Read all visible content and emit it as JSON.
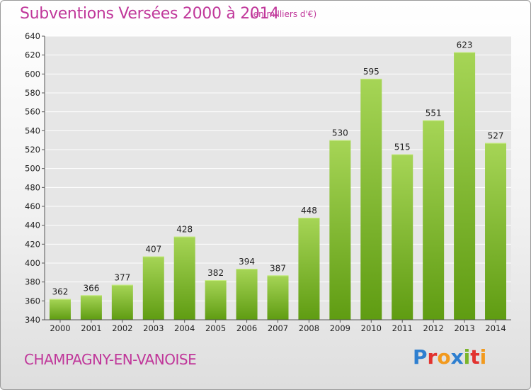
{
  "title": "Subventions Versées 2000 à 2014",
  "unit_note": "(en milliers d'€)",
  "commune": "CHAMPAGNY-EN-VANOISE",
  "logo": {
    "text": "Proxiti",
    "letters": [
      {
        "char": "P",
        "color": "#2e7fd0"
      },
      {
        "char": "r",
        "color": "#e2332f"
      },
      {
        "char": "o",
        "color": "#f29a1e"
      },
      {
        "char": "x",
        "color": "#2e7fd0"
      },
      {
        "char": "i",
        "color": "#7bb52a"
      },
      {
        "char": "t",
        "color": "#e2332f"
      },
      {
        "char": "i",
        "color": "#f29a1e"
      }
    ]
  },
  "colors": {
    "bar_light": "#a6d556",
    "bar_dark": "#5f9c12",
    "title": "#c0379a",
    "grid": "#ffffff"
  },
  "chart_data": {
    "type": "bar",
    "title": "Subventions Versées 2000 à 2014",
    "subtitle": "(en milliers d'€)",
    "categories": [
      "2000",
      "2001",
      "2002",
      "2003",
      "2004",
      "2005",
      "2006",
      "2007",
      "2008",
      "2009",
      "2010",
      "2011",
      "2012",
      "2013",
      "2014"
    ],
    "values": [
      362,
      366,
      377,
      407,
      428,
      382,
      394,
      387,
      448,
      530,
      595,
      515,
      551,
      623,
      527
    ],
    "ylim": [
      340,
      640
    ],
    "yticks": [
      340,
      360,
      380,
      400,
      420,
      440,
      460,
      480,
      500,
      520,
      540,
      560,
      580,
      600,
      620,
      640
    ],
    "grid": true,
    "xlabel": "",
    "ylabel": ""
  }
}
